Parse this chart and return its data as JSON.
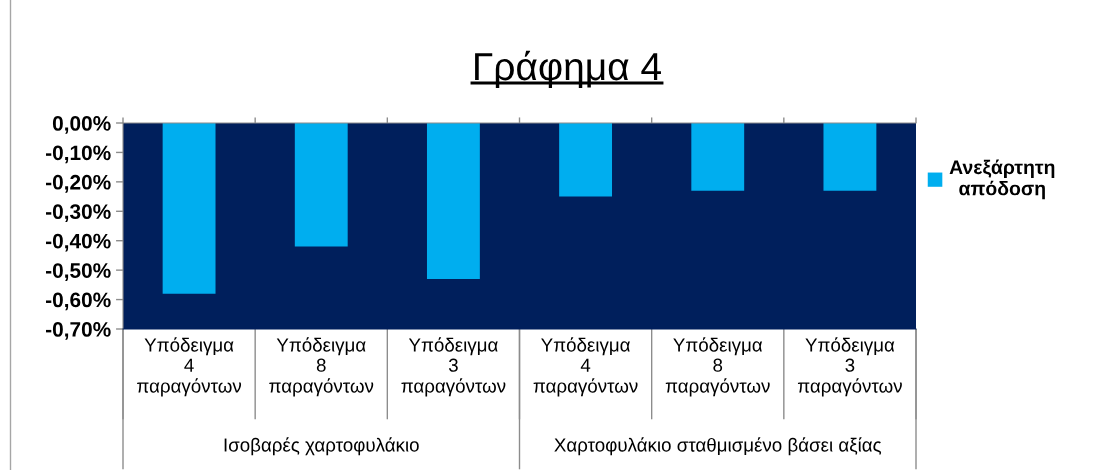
{
  "chart_data": {
    "type": "bar",
    "title": "Γράφημα 4",
    "categories": [
      "Υπόδειγμα 4 παραγόντων",
      "Υπόδειγμα 8 παραγόντων",
      "Υπόδειγμα 3 παραγόντων",
      "Υπόδειγμα 4 παραγόντων",
      "Υπόδειγμα 8 παραγόντων",
      "Υπόδειγμα 3 παραγόντων"
    ],
    "series": [
      {
        "name": "Ανεξάρτητη απόδοση",
        "color": "#00aeef",
        "values": [
          -0.58,
          -0.42,
          -0.53,
          -0.25,
          -0.23,
          -0.23
        ]
      }
    ],
    "ylim": [
      -0.7,
      0
    ],
    "yticks": [
      {
        "value": 0,
        "label": "0,00%"
      },
      {
        "value": -0.1,
        "label": "-0,10%"
      },
      {
        "value": -0.2,
        "label": "-0,20%"
      },
      {
        "value": -0.3,
        "label": "-0,30%"
      },
      {
        "value": -0.4,
        "label": "-0,40%"
      },
      {
        "value": -0.5,
        "label": "-0,50%"
      },
      {
        "value": -0.6,
        "label": "-0,60%"
      },
      {
        "value": -0.7,
        "label": "-0,70%"
      }
    ],
    "annotations": [
      "Ισοβαρές χαρτοφυλάκιο",
      "Χαρτοφυλάκιο σταθμισμένο βάσει αξίας"
    ],
    "legend": "right",
    "grid": false
  }
}
